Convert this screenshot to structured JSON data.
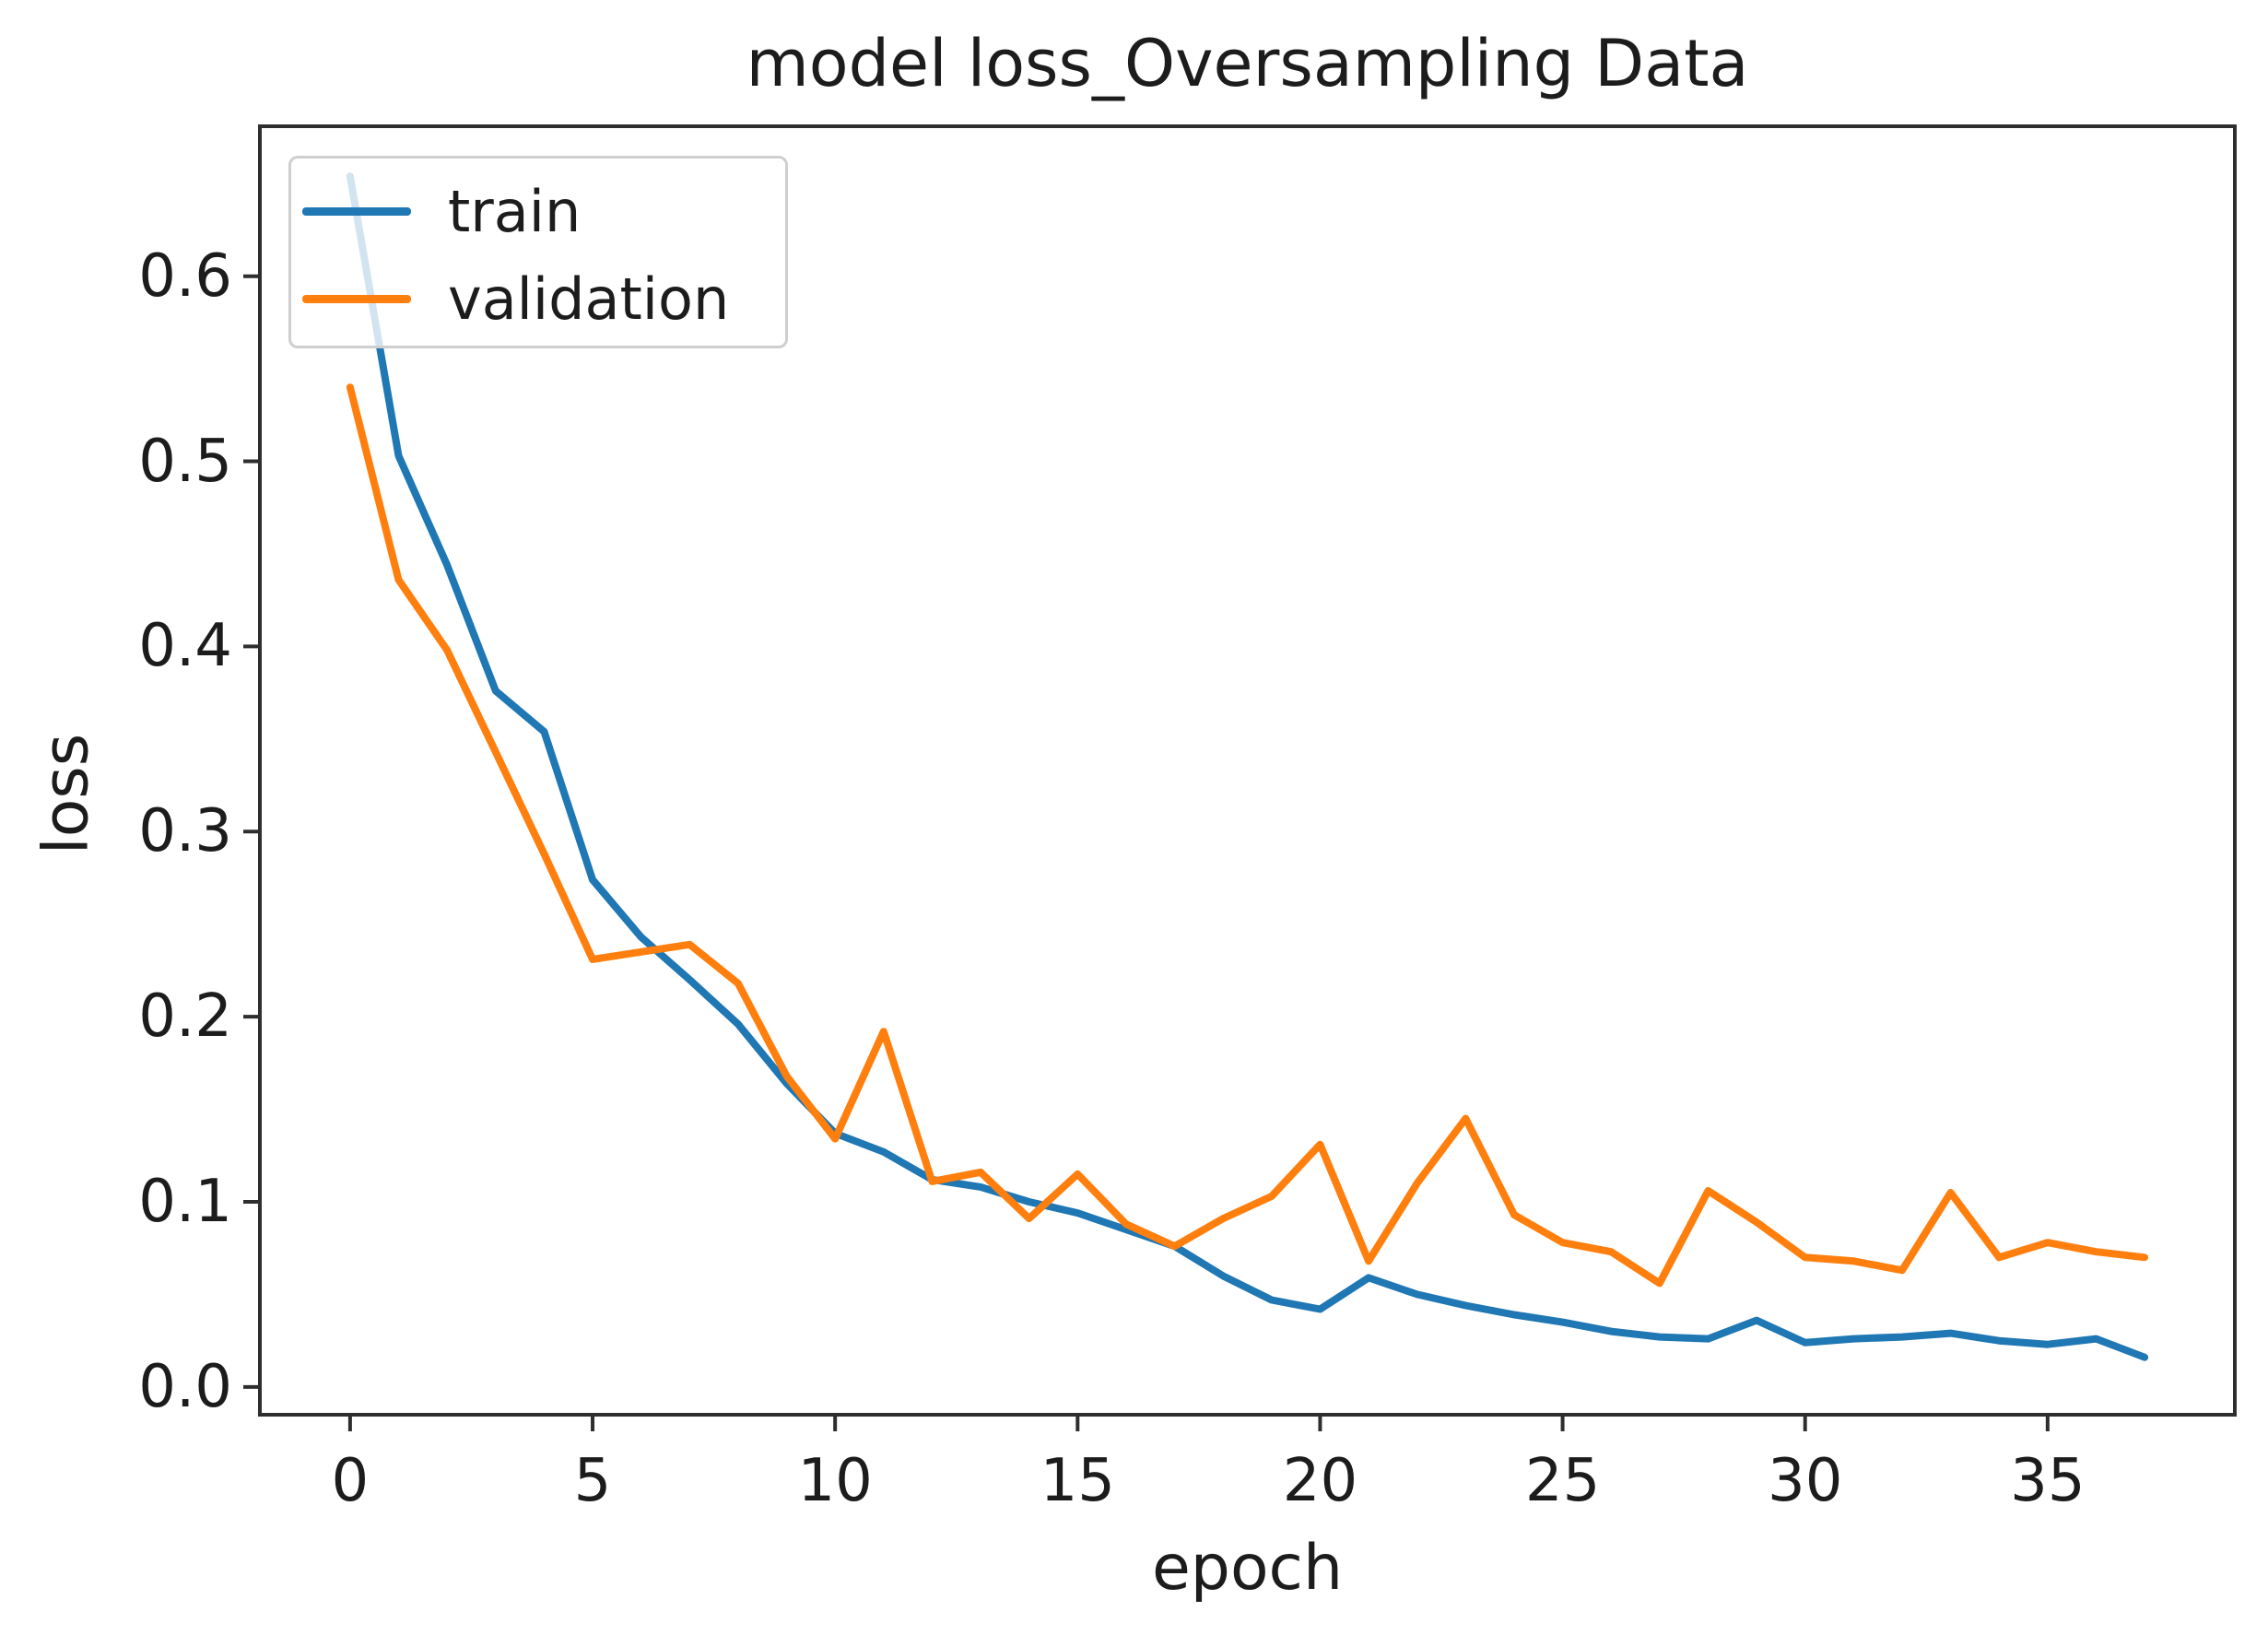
{
  "figure": {
    "background": "#ffffff"
  },
  "chart_data": {
    "type": "line",
    "title": "model loss_Oversampling Data",
    "xlabel": "epoch",
    "ylabel": "loss",
    "x": [
      0,
      1,
      2,
      3,
      4,
      5,
      6,
      7,
      8,
      9,
      10,
      11,
      12,
      13,
      14,
      15,
      16,
      17,
      18,
      19,
      20,
      21,
      22,
      23,
      24,
      25,
      26,
      27,
      28,
      29,
      30,
      31,
      32,
      33,
      34,
      35,
      36,
      37
    ],
    "series": [
      {
        "name": "train",
        "color": "#1f77b4",
        "values": [
          0.654,
          0.503,
          0.444,
          0.376,
          0.354,
          0.274,
          0.243,
          0.22,
          0.196,
          0.164,
          0.137,
          0.127,
          0.112,
          0.108,
          0.1,
          0.094,
          0.085,
          0.076,
          0.06,
          0.047,
          0.042,
          0.059,
          0.05,
          0.044,
          0.039,
          0.035,
          0.03,
          0.027,
          0.026,
          0.036,
          0.024,
          0.026,
          0.027,
          0.029,
          0.025,
          0.023,
          0.026,
          0.016
        ]
      },
      {
        "name": "validation",
        "color": "#ff7f0e",
        "values": [
          0.54,
          0.436,
          0.398,
          0.343,
          0.288,
          0.231,
          0.235,
          0.239,
          0.218,
          0.168,
          0.134,
          0.192,
          0.111,
          0.116,
          0.091,
          0.115,
          0.088,
          0.076,
          0.091,
          0.103,
          0.131,
          0.068,
          0.11,
          0.145,
          0.093,
          0.078,
          0.073,
          0.056,
          0.106,
          0.089,
          0.07,
          0.068,
          0.063,
          0.105,
          0.07,
          0.078,
          0.073,
          0.07
        ]
      }
    ],
    "xticks": [
      0,
      5,
      10,
      15,
      20,
      25,
      30,
      35
    ],
    "yticks": [
      0.0,
      0.1,
      0.2,
      0.3,
      0.4,
      0.5,
      0.6
    ],
    "ytick_labels": [
      "0.0",
      "0.1",
      "0.2",
      "0.3",
      "0.4",
      "0.5",
      "0.6"
    ],
    "xlim": [
      -1.86,
      38.86
    ],
    "ylim": [
      -0.015,
      0.681
    ],
    "grid": false,
    "legend_position": "upper left",
    "line_width": 8,
    "axis_color": "#2e2e2e",
    "text_color": "#1c1c1c"
  }
}
